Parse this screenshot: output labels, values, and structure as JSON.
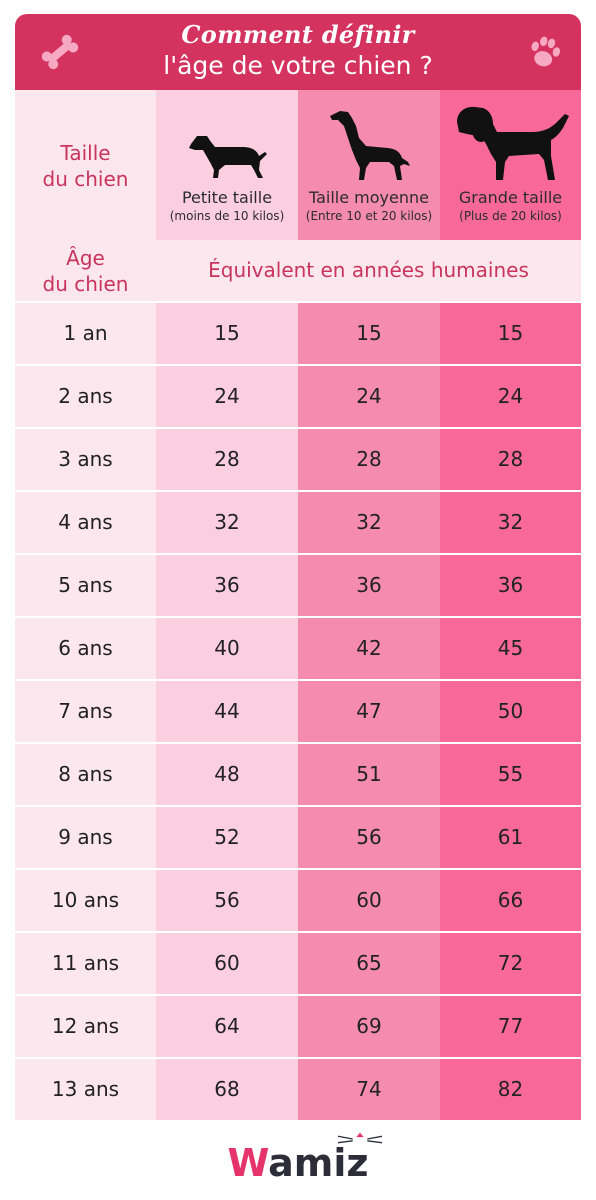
{
  "header": {
    "title_line1": "Comment définir",
    "title_line2": "l'âge de votre chien ?"
  },
  "table": {
    "size_label": "Taille\ndu chien",
    "age_label": "Âge\ndu chien",
    "equivalent_label": "Équivalent en années humaines",
    "columns": [
      {
        "name": "Petite taille",
        "note": "(moins de 10 kilos)"
      },
      {
        "name": "Taille moyenne",
        "note": "(Entre 10 et 20 kilos)"
      },
      {
        "name": "Grande taille",
        "note": "(Plus de 20 kilos)"
      }
    ],
    "rows": [
      {
        "age": "1 an",
        "values": [
          "15",
          "15",
          "15"
        ]
      },
      {
        "age": "2 ans",
        "values": [
          "24",
          "24",
          "24"
        ]
      },
      {
        "age": "3 ans",
        "values": [
          "28",
          "28",
          "28"
        ]
      },
      {
        "age": "4 ans",
        "values": [
          "32",
          "32",
          "32"
        ]
      },
      {
        "age": "5 ans",
        "values": [
          "36",
          "36",
          "36"
        ]
      },
      {
        "age": "6 ans",
        "values": [
          "40",
          "42",
          "45"
        ]
      },
      {
        "age": "7 ans",
        "values": [
          "44",
          "47",
          "50"
        ]
      },
      {
        "age": "8 ans",
        "values": [
          "48",
          "51",
          "55"
        ]
      },
      {
        "age": "9 ans",
        "values": [
          "52",
          "56",
          "61"
        ]
      },
      {
        "age": "10 ans",
        "values": [
          "56",
          "60",
          "66"
        ]
      },
      {
        "age": "11 ans",
        "values": [
          "60",
          "65",
          "72"
        ]
      },
      {
        "age": "12 ans",
        "values": [
          "64",
          "69",
          "77"
        ]
      },
      {
        "age": "13 ans",
        "values": [
          "68",
          "74",
          "82"
        ]
      }
    ]
  },
  "logo": {
    "w": "W",
    "rest": "amiz"
  },
  "colors": {
    "header": "#d5335f",
    "accent_text": "#c9345e",
    "col_label": "#fde7ef",
    "col_small": "#fccfe0",
    "col_medium": "#f58cb0",
    "col_large": "#f8699a"
  },
  "icons": [
    "bone-icon",
    "paw-icon",
    "small-dog-icon",
    "medium-dog-icon",
    "large-dog-icon",
    "cat-whiskers-icon"
  ]
}
